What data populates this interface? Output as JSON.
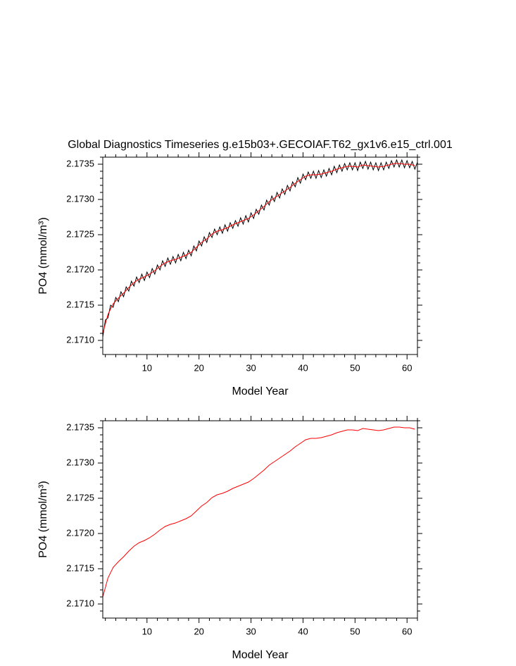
{
  "chart_data": [
    {
      "type": "line",
      "title": "Global Diagnostics Timeseries g.e15b03+.GECOIAF.T62_gx1v6.e15_ctrl.001",
      "xlabel": "Model Year",
      "ylabel": "PO4 (mmol/m³)",
      "xlim": [
        1.5,
        62
      ],
      "ylim": [
        2.1708,
        2.1736
      ],
      "xticks": [
        10,
        20,
        30,
        40,
        50,
        60
      ],
      "yticks": [
        {
          "value": 2.171,
          "label": "2.1710"
        },
        2.1715,
        {
          "value": 2.172,
          "label": "2.1720"
        },
        2.1725,
        {
          "value": 2.173,
          "label": "2.1730"
        },
        2.1735
      ],
      "xminorticks": [
        2,
        4,
        6,
        8,
        12,
        14,
        16,
        18,
        22,
        24,
        26,
        28,
        32,
        34,
        36,
        38,
        42,
        44,
        46,
        48,
        52,
        54,
        56,
        58,
        62
      ],
      "yminorticks": [
        2.1709,
        2.1711,
        2.1712,
        2.1713,
        2.1714,
        2.1716,
        2.1717,
        2.1718,
        2.1719,
        2.1721,
        2.1722,
        2.1723,
        2.1724,
        2.1726,
        2.1727,
        2.1728,
        2.1729,
        2.1731,
        2.1732,
        2.1733,
        2.1734,
        2.1736
      ],
      "series": [
        {
          "color": "#000000",
          "x": [
            1.5,
            2,
            2.5,
            3,
            3.5,
            4,
            4.5,
            5,
            5.5,
            6,
            6.5,
            7,
            7.5,
            8,
            8.5,
            9,
            9.5,
            10,
            10.5,
            11,
            11.5,
            12,
            12.5,
            13,
            13.5,
            14,
            14.5,
            15,
            15.5,
            16,
            16.5,
            17,
            17.5,
            18,
            18.5,
            19,
            19.5,
            20,
            20.5,
            21,
            21.5,
            22,
            22.5,
            23,
            23.5,
            24,
            24.5,
            25,
            25.5,
            26,
            26.5,
            27,
            27.5,
            28,
            28.5,
            29,
            29.5,
            30,
            30.5,
            31,
            31.5,
            32,
            32.5,
            33,
            33.5,
            34,
            34.5,
            35,
            35.5,
            36,
            36.5,
            37,
            37.5,
            38,
            38.5,
            39,
            39.5,
            40,
            40.5,
            41,
            41.5,
            42,
            42.5,
            43,
            43.5,
            44,
            44.5,
            45,
            45.5,
            46,
            46.5,
            47,
            47.5,
            48,
            48.5,
            49,
            49.5,
            50,
            50.5,
            51,
            51.5,
            52,
            52.5,
            53,
            53.5,
            54,
            54.5,
            55,
            55.5,
            56,
            56.5,
            57,
            57.5,
            58,
            58.5,
            59,
            59.5,
            60,
            60.5,
            61,
            61.5,
            62
          ],
          "values": [
            2.17105,
            2.17129,
            2.17132,
            2.1715,
            2.17147,
            2.17161,
            2.17155,
            2.17169,
            2.17162,
            2.17176,
            2.1717,
            2.17184,
            2.17177,
            2.1719,
            2.17182,
            2.17194,
            2.17185,
            2.17197,
            2.17189,
            2.17202,
            2.17194,
            2.17207,
            2.172,
            2.17213,
            2.17205,
            2.17217,
            2.17208,
            2.17219,
            2.1721,
            2.17222,
            2.17213,
            2.17225,
            2.17216,
            2.17228,
            2.1722,
            2.17234,
            2.17227,
            2.17241,
            2.17234,
            2.17247,
            2.17239,
            2.17253,
            2.17246,
            2.17258,
            2.1725,
            2.17261,
            2.17252,
            2.17264,
            2.17255,
            2.17267,
            2.17259,
            2.1727,
            2.17262,
            2.17274,
            2.17265,
            2.17277,
            2.17268,
            2.17281,
            2.17273,
            2.17286,
            2.17279,
            2.17292,
            2.17285,
            2.17299,
            2.17292,
            2.17305,
            2.17297,
            2.1731,
            2.17302,
            2.17315,
            2.17307,
            2.1732,
            2.17312,
            2.17325,
            2.17318,
            2.17331,
            2.17323,
            2.17336,
            2.17328,
            2.17339,
            2.1733,
            2.1734,
            2.1733,
            2.17341,
            2.17331,
            2.17342,
            2.17333,
            2.17344,
            2.17335,
            2.17347,
            2.17338,
            2.17349,
            2.1734,
            2.17351,
            2.17342,
            2.17352,
            2.17342,
            2.17352,
            2.17341,
            2.17353,
            2.17344,
            2.17354,
            2.17343,
            2.17353,
            2.17342,
            2.17352,
            2.17341,
            2.17352,
            2.17342,
            2.17353,
            2.17344,
            2.17355,
            2.17346,
            2.17356,
            2.17346,
            2.17356,
            2.17345,
            2.17355,
            2.17345,
            2.17354,
            2.17343,
            2.17353
          ]
        },
        {
          "color": "#ff0000",
          "x": [
            1.5,
            2.5,
            3.5,
            4.5,
            5.5,
            6.5,
            7.5,
            8.5,
            9.5,
            10.5,
            11.5,
            12.5,
            13.5,
            14.5,
            15.5,
            16.5,
            17.5,
            18.5,
            19.5,
            20.5,
            21.5,
            22.5,
            23.5,
            24.5,
            25.5,
            26.5,
            27.5,
            28.5,
            29.5,
            30.5,
            31.5,
            32.5,
            33.5,
            34.5,
            35.5,
            36.5,
            37.5,
            38.5,
            39.5,
            40.5,
            41.5,
            42.5,
            43.5,
            44.5,
            45.5,
            46.5,
            47.5,
            48.5,
            49.5,
            50.5,
            51.5,
            52.5,
            53.5,
            54.5,
            55.5,
            56.5,
            57.5,
            58.5,
            59.5,
            60.5,
            61.5
          ],
          "values": [
            2.1711,
            2.17137,
            2.17152,
            2.1716,
            2.17167,
            2.17175,
            2.17182,
            2.17187,
            2.1719,
            2.17194,
            2.17199,
            2.17205,
            2.1721,
            2.17213,
            2.17215,
            2.17218,
            2.17221,
            2.17225,
            2.17232,
            2.17239,
            2.17244,
            2.17251,
            2.17255,
            2.17257,
            2.1726,
            2.17264,
            2.17267,
            2.1727,
            2.17273,
            2.17278,
            2.17284,
            2.1729,
            2.17297,
            2.17302,
            2.17307,
            2.17312,
            2.17317,
            2.17323,
            2.17328,
            2.17333,
            2.17335,
            2.17335,
            2.17336,
            2.17338,
            2.1734,
            2.17343,
            2.17345,
            2.17347,
            2.17347,
            2.17346,
            2.17349,
            2.17348,
            2.17347,
            2.17346,
            2.17347,
            2.17349,
            2.17351,
            2.17351,
            2.1735,
            2.1735,
            2.17348
          ]
        }
      ]
    },
    {
      "type": "line",
      "xlabel": "Model Year",
      "ylabel": "PO4 (mmol/m³)",
      "xlim": [
        1.5,
        62
      ],
      "ylim": [
        2.1708,
        2.1736
      ],
      "xticks": [
        10,
        20,
        30,
        40,
        50,
        60
      ],
      "yticks": [
        {
          "value": 2.171,
          "label": "2.1710"
        },
        2.1715,
        {
          "value": 2.172,
          "label": "2.1720"
        },
        2.1725,
        {
          "value": 2.173,
          "label": "2.1730"
        },
        2.1735
      ],
      "xminorticks": [
        2,
        4,
        6,
        8,
        12,
        14,
        16,
        18,
        22,
        24,
        26,
        28,
        32,
        34,
        36,
        38,
        42,
        44,
        46,
        48,
        52,
        54,
        56,
        58,
        62
      ],
      "yminorticks": [
        2.1709,
        2.1711,
        2.1712,
        2.1713,
        2.1714,
        2.1716,
        2.1717,
        2.1718,
        2.1719,
        2.1721,
        2.1722,
        2.1723,
        2.1724,
        2.1726,
        2.1727,
        2.1728,
        2.1729,
        2.1731,
        2.1732,
        2.1733,
        2.1734,
        2.1736
      ],
      "series": [
        {
          "color": "#ff0000",
          "x": [
            1.5,
            2.5,
            3.5,
            4.5,
            5.5,
            6.5,
            7.5,
            8.5,
            9.5,
            10.5,
            11.5,
            12.5,
            13.5,
            14.5,
            15.5,
            16.5,
            17.5,
            18.5,
            19.5,
            20.5,
            21.5,
            22.5,
            23.5,
            24.5,
            25.5,
            26.5,
            27.5,
            28.5,
            29.5,
            30.5,
            31.5,
            32.5,
            33.5,
            34.5,
            35.5,
            36.5,
            37.5,
            38.5,
            39.5,
            40.5,
            41.5,
            42.5,
            43.5,
            44.5,
            45.5,
            46.5,
            47.5,
            48.5,
            49.5,
            50.5,
            51.5,
            52.5,
            53.5,
            54.5,
            55.5,
            56.5,
            57.5,
            58.5,
            59.5,
            60.5,
            61.5
          ],
          "values": [
            2.1711,
            2.17137,
            2.17152,
            2.1716,
            2.17167,
            2.17175,
            2.17182,
            2.17187,
            2.1719,
            2.17194,
            2.17199,
            2.17205,
            2.1721,
            2.17213,
            2.17215,
            2.17218,
            2.17221,
            2.17225,
            2.17232,
            2.17239,
            2.17244,
            2.17251,
            2.17255,
            2.17257,
            2.1726,
            2.17264,
            2.17267,
            2.1727,
            2.17273,
            2.17278,
            2.17284,
            2.1729,
            2.17297,
            2.17302,
            2.17307,
            2.17312,
            2.17317,
            2.17323,
            2.17328,
            2.17333,
            2.17335,
            2.17335,
            2.17336,
            2.17338,
            2.1734,
            2.17343,
            2.17345,
            2.17347,
            2.17347,
            2.17346,
            2.17349,
            2.17348,
            2.17347,
            2.17346,
            2.17347,
            2.17349,
            2.17351,
            2.17351,
            2.1735,
            2.1735,
            2.17348
          ]
        }
      ]
    }
  ]
}
